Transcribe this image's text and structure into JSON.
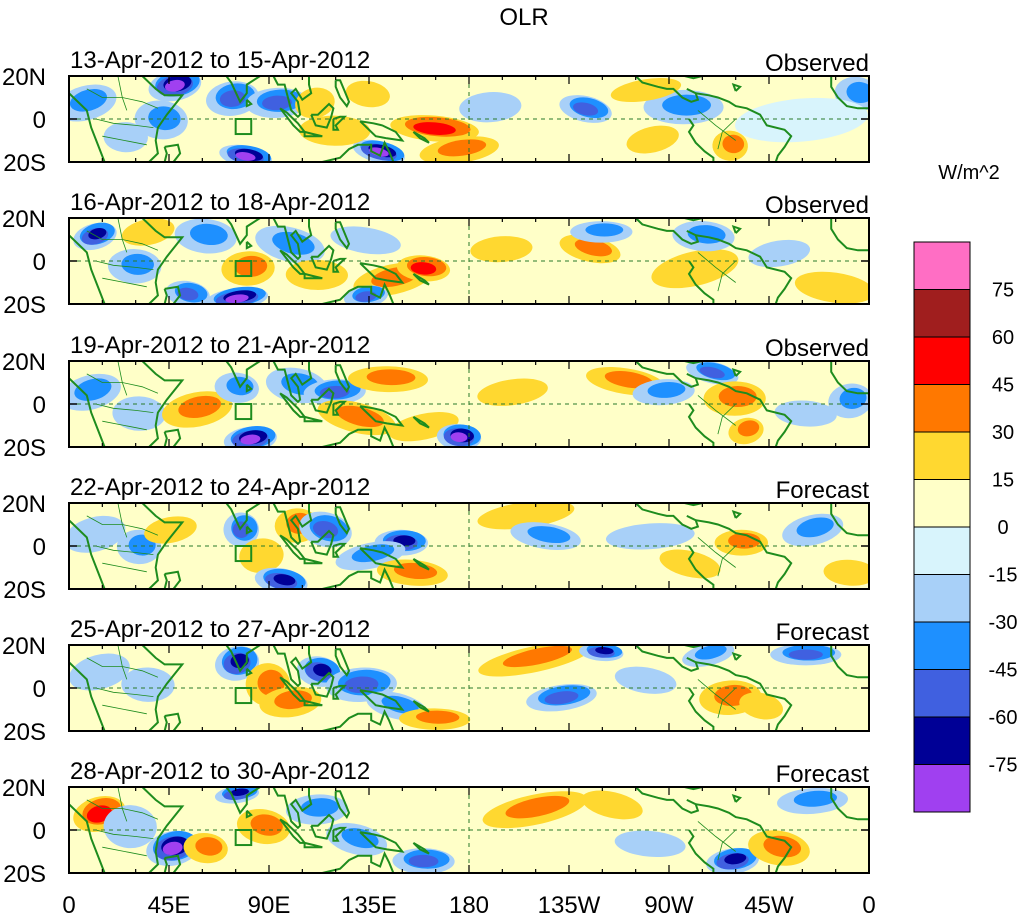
{
  "chart_data": {
    "type": "heatmap",
    "title": "OLR",
    "x_tick_labels": [
      "0",
      "45E",
      "90E",
      "135E",
      "180",
      "135W",
      "90W",
      "45W",
      "0"
    ],
    "x_ticks_deg_east": [
      0,
      45,
      90,
      135,
      180,
      225,
      270,
      315,
      360
    ],
    "xlim": [
      0,
      360
    ],
    "y_tick_labels": [
      "20N",
      "0",
      "20S"
    ],
    "y_ticks_deg": [
      20,
      0,
      -20
    ],
    "ylim": [
      -20,
      20
    ],
    "reference_lines": {
      "equator_lat": 0,
      "dateline_lon": 180,
      "style": "dashed"
    },
    "box_marker": {
      "lon_range": [
        75,
        82
      ],
      "lat_range": [
        -7,
        0
      ]
    },
    "colorbar": {
      "title": "W/m^2",
      "levels": [
        -75,
        -60,
        -45,
        -30,
        -15,
        0,
        15,
        30,
        45,
        60,
        75
      ],
      "tick_labels": [
        "-75",
        "-60",
        "-45",
        "-30",
        "-15",
        "0",
        "15",
        "30",
        "45",
        "60",
        "75"
      ],
      "colors": [
        "#a040f0",
        "#000096",
        "#4060e0",
        "#1e90ff",
        "#a8d0f8",
        "#d8f4fc",
        "#ffffc8",
        "#ffd830",
        "#ff7800",
        "#ff0000",
        "#a01e1e",
        "#ff6ec4"
      ]
    },
    "panels": [
      {
        "date_range": "13-Apr-2012 to 15-Apr-2012",
        "kind": "Observed",
        "anomalies": [
          {
            "lon": 8,
            "lat": 8,
            "w": 14,
            "h": 8,
            "v": -35
          },
          {
            "lon": 26,
            "lat": -8,
            "w": 10,
            "h": 7,
            "v": -22
          },
          {
            "lon": 48,
            "lat": 16,
            "w": 12,
            "h": 7,
            "v": -80
          },
          {
            "lon": 42,
            "lat": 0,
            "w": 12,
            "h": 9,
            "v": -30
          },
          {
            "lon": 74,
            "lat": 10,
            "w": 12,
            "h": 8,
            "v": -50
          },
          {
            "lon": 80,
            "lat": -17,
            "w": 12,
            "h": 5,
            "v": -80
          },
          {
            "lon": 94,
            "lat": 8,
            "w": 14,
            "h": 7,
            "v": -45
          },
          {
            "lon": 140,
            "lat": -15,
            "w": 12,
            "h": 5,
            "v": -80
          },
          {
            "lon": 120,
            "lat": -5,
            "w": 16,
            "h": 7,
            "v": 22
          },
          {
            "lon": 111,
            "lat": 8,
            "w": 9,
            "h": 7,
            "v": 25
          },
          {
            "lon": 165,
            "lat": -4,
            "w": 20,
            "h": 6,
            "v": 52
          },
          {
            "lon": 176,
            "lat": -14,
            "w": 18,
            "h": 6,
            "v": 32
          },
          {
            "lon": 135,
            "lat": 12,
            "w": 10,
            "h": 6,
            "v": 25
          },
          {
            "lon": 190,
            "lat": 6,
            "w": 14,
            "h": 7,
            "v": -25
          },
          {
            "lon": 233,
            "lat": 5,
            "w": 12,
            "h": 6,
            "v": -45
          },
          {
            "lon": 277,
            "lat": 6,
            "w": 18,
            "h": 8,
            "v": -35
          },
          {
            "lon": 263,
            "lat": -9,
            "w": 12,
            "h": 6,
            "v": 18
          },
          {
            "lon": 298,
            "lat": -12,
            "w": 8,
            "h": 7,
            "v": 38
          },
          {
            "lon": 260,
            "lat": 14,
            "w": 16,
            "h": 5,
            "v": 20
          },
          {
            "lon": 355,
            "lat": 12,
            "w": 10,
            "h": 8,
            "v": -40
          },
          {
            "lon": 330,
            "lat": 0,
            "w": 30,
            "h": 10,
            "v": -12
          }
        ]
      },
      {
        "date_range": "16-Apr-2012 to 18-Apr-2012",
        "kind": "Observed",
        "anomalies": [
          {
            "lon": 12,
            "lat": 12,
            "w": 10,
            "h": 6,
            "v": -65
          },
          {
            "lon": 30,
            "lat": -2,
            "w": 12,
            "h": 8,
            "v": -30
          },
          {
            "lon": 36,
            "lat": 14,
            "w": 12,
            "h": 6,
            "v": 22
          },
          {
            "lon": 62,
            "lat": 12,
            "w": 14,
            "h": 8,
            "v": -40
          },
          {
            "lon": 76,
            "lat": -17,
            "w": 14,
            "h": 5,
            "v": -78
          },
          {
            "lon": 54,
            "lat": -15,
            "w": 10,
            "h": 6,
            "v": -45
          },
          {
            "lon": 81,
            "lat": -3,
            "w": 12,
            "h": 8,
            "v": 36
          },
          {
            "lon": 100,
            "lat": 8,
            "w": 16,
            "h": 8,
            "v": -35
          },
          {
            "lon": 112,
            "lat": -6,
            "w": 14,
            "h": 7,
            "v": 22
          },
          {
            "lon": 146,
            "lat": -8,
            "w": 18,
            "h": 7,
            "v": 30
          },
          {
            "lon": 160,
            "lat": -3,
            "w": 12,
            "h": 6,
            "v": 50
          },
          {
            "lon": 134,
            "lat": -16,
            "w": 10,
            "h": 5,
            "v": -50
          },
          {
            "lon": 134,
            "lat": 10,
            "w": 16,
            "h": 6,
            "v": -25
          },
          {
            "lon": 195,
            "lat": 6,
            "w": 14,
            "h": 6,
            "v": 25
          },
          {
            "lon": 235,
            "lat": 6,
            "w": 14,
            "h": 6,
            "v": 35
          },
          {
            "lon": 240,
            "lat": 14,
            "w": 14,
            "h": 5,
            "v": -30
          },
          {
            "lon": 282,
            "lat": -3,
            "w": 20,
            "h": 8,
            "v": 18
          },
          {
            "lon": 286,
            "lat": 12,
            "w": 14,
            "h": 7,
            "v": -30
          },
          {
            "lon": 320,
            "lat": 4,
            "w": 14,
            "h": 6,
            "v": -25
          },
          {
            "lon": 345,
            "lat": -12,
            "w": 18,
            "h": 7,
            "v": 20
          }
        ]
      },
      {
        "date_range": "19-Apr-2012 to 21-Apr-2012",
        "kind": "Observed",
        "anomalies": [
          {
            "lon": 10,
            "lat": 6,
            "w": 14,
            "h": 8,
            "v": -30
          },
          {
            "lon": 32,
            "lat": -4,
            "w": 12,
            "h": 8,
            "v": -22
          },
          {
            "lon": 58,
            "lat": -2,
            "w": 16,
            "h": 8,
            "v": 35
          },
          {
            "lon": 76,
            "lat": 8,
            "w": 10,
            "h": 7,
            "v": -30
          },
          {
            "lon": 82,
            "lat": -16,
            "w": 12,
            "h": 6,
            "v": -80
          },
          {
            "lon": 103,
            "lat": 9,
            "w": 14,
            "h": 8,
            "v": -35
          },
          {
            "lon": 120,
            "lat": 6,
            "w": 14,
            "h": 6,
            "v": -58
          },
          {
            "lon": 130,
            "lat": -6,
            "w": 18,
            "h": 7,
            "v": 32
          },
          {
            "lon": 144,
            "lat": 12,
            "w": 18,
            "h": 6,
            "v": 40
          },
          {
            "lon": 160,
            "lat": -10,
            "w": 16,
            "h": 6,
            "v": 28
          },
          {
            "lon": 176,
            "lat": -15,
            "w": 10,
            "h": 6,
            "v": -80
          },
          {
            "lon": 200,
            "lat": 6,
            "w": 16,
            "h": 6,
            "v": 20
          },
          {
            "lon": 251,
            "lat": 11,
            "w": 18,
            "h": 6,
            "v": 35
          },
          {
            "lon": 268,
            "lat": 6,
            "w": 14,
            "h": 6,
            "v": -30
          },
          {
            "lon": 290,
            "lat": 15,
            "w": 12,
            "h": 5,
            "v": -55
          },
          {
            "lon": 300,
            "lat": 3,
            "w": 14,
            "h": 8,
            "v": 32
          },
          {
            "lon": 305,
            "lat": -12,
            "w": 8,
            "h": 6,
            "v": 30
          },
          {
            "lon": 332,
            "lat": -4,
            "w": 14,
            "h": 6,
            "v": -25
          },
          {
            "lon": 352,
            "lat": 2,
            "w": 10,
            "h": 8,
            "v": -35
          }
        ]
      },
      {
        "date_range": "22-Apr-2012 to 24-Apr-2012",
        "kind": "Forecast",
        "anomalies": [
          {
            "lon": 12,
            "lat": 6,
            "w": 14,
            "h": 8,
            "v": -20
          },
          {
            "lon": 32,
            "lat": 0,
            "w": 10,
            "h": 8,
            "v": -35
          },
          {
            "lon": 46,
            "lat": 8,
            "w": 12,
            "h": 6,
            "v": 18
          },
          {
            "lon": 78,
            "lat": 8,
            "w": 8,
            "h": 8,
            "v": -58
          },
          {
            "lon": 87,
            "lat": -4,
            "w": 10,
            "h": 8,
            "v": 25
          },
          {
            "lon": 96,
            "lat": -16,
            "w": 12,
            "h": 6,
            "v": -70
          },
          {
            "lon": 103,
            "lat": 10,
            "w": 10,
            "h": 8,
            "v": 38
          },
          {
            "lon": 116,
            "lat": 8,
            "w": 12,
            "h": 8,
            "v": -55
          },
          {
            "lon": 150,
            "lat": 2,
            "w": 12,
            "h": 6,
            "v": -72
          },
          {
            "lon": 136,
            "lat": -4,
            "w": 16,
            "h": 6,
            "v": -35
          },
          {
            "lon": 155,
            "lat": -12,
            "w": 16,
            "h": 6,
            "v": 38
          },
          {
            "lon": 206,
            "lat": 15,
            "w": 22,
            "h": 6,
            "v": 22
          },
          {
            "lon": 215,
            "lat": 5,
            "w": 16,
            "h": 6,
            "v": -30
          },
          {
            "lon": 262,
            "lat": 5,
            "w": 20,
            "h": 6,
            "v": -25
          },
          {
            "lon": 280,
            "lat": -8,
            "w": 14,
            "h": 6,
            "v": 20
          },
          {
            "lon": 303,
            "lat": 2,
            "w": 12,
            "h": 6,
            "v": 35
          },
          {
            "lon": 335,
            "lat": 8,
            "w": 14,
            "h": 7,
            "v": -30
          },
          {
            "lon": 352,
            "lat": -12,
            "w": 12,
            "h": 6,
            "v": 20
          }
        ]
      },
      {
        "date_range": "25-Apr-2012 to 27-Apr-2012",
        "kind": "Forecast",
        "anomalies": [
          {
            "lon": 14,
            "lat": 8,
            "w": 14,
            "h": 8,
            "v": -25
          },
          {
            "lon": 36,
            "lat": 2,
            "w": 12,
            "h": 8,
            "v": -18
          },
          {
            "lon": 76,
            "lat": 12,
            "w": 10,
            "h": 8,
            "v": -62
          },
          {
            "lon": 90,
            "lat": 2,
            "w": 10,
            "h": 10,
            "v": 42
          },
          {
            "lon": 100,
            "lat": -6,
            "w": 14,
            "h": 7,
            "v": 40
          },
          {
            "lon": 113,
            "lat": 8,
            "w": 10,
            "h": 7,
            "v": -62
          },
          {
            "lon": 132,
            "lat": 2,
            "w": 16,
            "h": 8,
            "v": -45
          },
          {
            "lon": 148,
            "lat": -8,
            "w": 14,
            "h": 6,
            "v": -30
          },
          {
            "lon": 165,
            "lat": -14,
            "w": 16,
            "h": 5,
            "v": 38
          },
          {
            "lon": 210,
            "lat": 14,
            "w": 26,
            "h": 6,
            "v": 42
          },
          {
            "lon": 240,
            "lat": 17,
            "w": 10,
            "h": 4,
            "v": -72
          },
          {
            "lon": 222,
            "lat": -4,
            "w": 16,
            "h": 6,
            "v": -50
          },
          {
            "lon": 260,
            "lat": 4,
            "w": 14,
            "h": 6,
            "v": -25
          },
          {
            "lon": 298,
            "lat": -4,
            "w": 14,
            "h": 8,
            "v": 35
          },
          {
            "lon": 312,
            "lat": -8,
            "w": 10,
            "h": 6,
            "v": 28
          },
          {
            "lon": 332,
            "lat": 16,
            "w": 16,
            "h": 5,
            "v": -55
          },
          {
            "lon": 288,
            "lat": 16,
            "w": 12,
            "h": 5,
            "v": -40
          }
        ]
      },
      {
        "date_range": "28-Apr-2012 to 30-Apr-2012",
        "kind": "Forecast",
        "anomalies": [
          {
            "lon": 14,
            "lat": 8,
            "w": 12,
            "h": 8,
            "v": 50
          },
          {
            "lon": 28,
            "lat": 2,
            "w": 12,
            "h": 10,
            "v": -22
          },
          {
            "lon": 47,
            "lat": -8,
            "w": 12,
            "h": 8,
            "v": -80
          },
          {
            "lon": 62,
            "lat": -8,
            "w": 10,
            "h": 7,
            "v": 30
          },
          {
            "lon": 76,
            "lat": 17,
            "w": 10,
            "h": 4,
            "v": -62
          },
          {
            "lon": 88,
            "lat": 2,
            "w": 12,
            "h": 8,
            "v": 42
          },
          {
            "lon": 112,
            "lat": 10,
            "w": 14,
            "h": 7,
            "v": -40
          },
          {
            "lon": 130,
            "lat": -4,
            "w": 14,
            "h": 7,
            "v": -40
          },
          {
            "lon": 160,
            "lat": -14,
            "w": 14,
            "h": 6,
            "v": -45
          },
          {
            "lon": 210,
            "lat": 10,
            "w": 24,
            "h": 7,
            "v": 42
          },
          {
            "lon": 262,
            "lat": -6,
            "w": 16,
            "h": 6,
            "v": -28
          },
          {
            "lon": 299,
            "lat": -14,
            "w": 12,
            "h": 6,
            "v": -72
          },
          {
            "lon": 320,
            "lat": -8,
            "w": 14,
            "h": 8,
            "v": 35
          },
          {
            "lon": 335,
            "lat": 14,
            "w": 16,
            "h": 6,
            "v": -30
          },
          {
            "lon": 245,
            "lat": 12,
            "w": 14,
            "h": 6,
            "v": 20
          }
        ]
      }
    ]
  }
}
